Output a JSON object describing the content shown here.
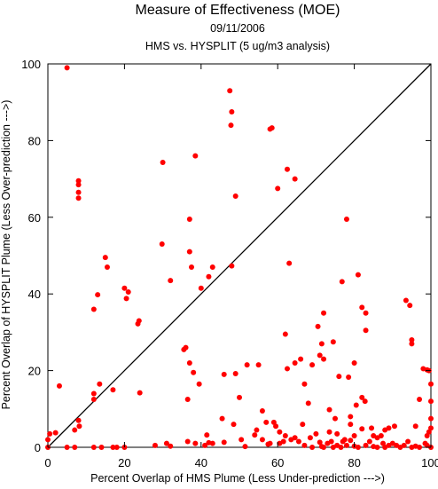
{
  "chart_data": {
    "type": "scatter",
    "title": "Measure of Effectiveness (MOE)",
    "subtitle_date": "09/11/2006",
    "subtitle_analysis": "HMS vs. HYSPLIT  (5 ug/m3 analysis)",
    "xlabel": "Percent Overlap of HMS Plume (Less Under-prediction --->)",
    "ylabel": "Percent Overlap of HYSPLIT Plume (Less Over-prediction --->)",
    "xlim": [
      0,
      100
    ],
    "ylim": [
      0,
      100
    ],
    "x_ticks": [
      "0",
      "20",
      "40",
      "60",
      "80",
      "100"
    ],
    "y_ticks": [
      "0",
      "20",
      "40",
      "60",
      "80",
      "100"
    ],
    "grid": false,
    "reference_line": "diagonal 1:1",
    "point_color": "#ff0000",
    "line_color": "#000000",
    "series": [
      {
        "points": [
          [
            5,
            99
          ],
          [
            8,
            69.5
          ],
          [
            8,
            68.5
          ],
          [
            8,
            66.5
          ],
          [
            8,
            65
          ],
          [
            15,
            49.5
          ],
          [
            15.5,
            47
          ],
          [
            12,
            36
          ],
          [
            13,
            39.8
          ],
          [
            21,
            40.5
          ],
          [
            20,
            41.5
          ],
          [
            20.5,
            38.8
          ],
          [
            23.5,
            32.2
          ],
          [
            23.8,
            33
          ],
          [
            12,
            12.5
          ],
          [
            12,
            14
          ],
          [
            13.5,
            16.5
          ],
          [
            17,
            15
          ],
          [
            24,
            14.2
          ],
          [
            8,
            7
          ],
          [
            8.2,
            5.5
          ],
          [
            7,
            4.5
          ],
          [
            3,
            16
          ],
          [
            2,
            3.8
          ],
          [
            0.5,
            3.5
          ],
          [
            0,
            2
          ],
          [
            0,
            0
          ],
          [
            5,
            0
          ],
          [
            7,
            0
          ],
          [
            12,
            0
          ],
          [
            14,
            0
          ],
          [
            17,
            0
          ],
          [
            18,
            0
          ],
          [
            20,
            0
          ],
          [
            28,
            0.5
          ],
          [
            32,
            0.3
          ],
          [
            36.5,
            1.5
          ],
          [
            38.5,
            1
          ],
          [
            41,
            0.5
          ],
          [
            42,
            1.2
          ],
          [
            43,
            1
          ],
          [
            46,
            1.3
          ],
          [
            31,
            1
          ],
          [
            30,
            74.3
          ],
          [
            29.8,
            53
          ],
          [
            32,
            43.5
          ],
          [
            37,
            59.5
          ],
          [
            37,
            51
          ],
          [
            37.5,
            47
          ],
          [
            38.5,
            76
          ],
          [
            40,
            41.5
          ],
          [
            42,
            44.5
          ],
          [
            43,
            47
          ],
          [
            35.5,
            25.5
          ],
          [
            36,
            26
          ],
          [
            37,
            22
          ],
          [
            38,
            19.5
          ],
          [
            36.5,
            12.5
          ],
          [
            39.5,
            16.5
          ],
          [
            45.5,
            7.5
          ],
          [
            41.5,
            3.2
          ],
          [
            47.5,
            93
          ],
          [
            48,
            87.5
          ],
          [
            47.8,
            84
          ],
          [
            48,
            47.3
          ],
          [
            49,
            65.5
          ],
          [
            46,
            19
          ],
          [
            49,
            19.2
          ],
          [
            52,
            21.5
          ],
          [
            50,
            13
          ],
          [
            48.5,
            6
          ],
          [
            50.5,
            2
          ],
          [
            51.5,
            0.2
          ],
          [
            55,
            21.5
          ],
          [
            56,
            9.5
          ],
          [
            57,
            6.5
          ],
          [
            58,
            83
          ],
          [
            58.5,
            83.3
          ],
          [
            60,
            67.5
          ],
          [
            62.5,
            72.5
          ],
          [
            64.5,
            70
          ],
          [
            63,
            48
          ],
          [
            62,
            29.5
          ],
          [
            62.5,
            20.5
          ],
          [
            64.5,
            22
          ],
          [
            66,
            23
          ],
          [
            67,
            16.5
          ],
          [
            69,
            21.5
          ],
          [
            70.5,
            31.5
          ],
          [
            71.5,
            27
          ],
          [
            72,
            35
          ],
          [
            71,
            24
          ],
          [
            72,
            23
          ],
          [
            73.5,
            9.8
          ],
          [
            74.5,
            27.5
          ],
          [
            75,
            7.5
          ],
          [
            75.5,
            3.5
          ],
          [
            76,
            18.5
          ],
          [
            76.8,
            43.2
          ],
          [
            78.5,
            18.3
          ],
          [
            78,
            59.5
          ],
          [
            79,
            8
          ],
          [
            79,
            6
          ],
          [
            80,
            3
          ],
          [
            80.5,
            11
          ],
          [
            81,
            45
          ],
          [
            82,
            36.5
          ],
          [
            82,
            13
          ],
          [
            83,
            35
          ],
          [
            83,
            30.5
          ],
          [
            82.8,
            12
          ],
          [
            80,
            22
          ],
          [
            84.5,
            5
          ],
          [
            85,
            3
          ],
          [
            86,
            2.5
          ],
          [
            88,
            4.5
          ],
          [
            87,
            3
          ],
          [
            89,
            5
          ],
          [
            90,
            1
          ],
          [
            91,
            0.5
          ],
          [
            93.5,
            38.3
          ],
          [
            94.5,
            37
          ],
          [
            95,
            28
          ],
          [
            95,
            27
          ],
          [
            97,
            12.5
          ],
          [
            96,
            5.5
          ],
          [
            98,
            20.5
          ],
          [
            99,
            20.2
          ],
          [
            99.5,
            20
          ],
          [
            100,
            16.5
          ],
          [
            100,
            12
          ],
          [
            100,
            7.5
          ],
          [
            100,
            5
          ],
          [
            99.5,
            4
          ],
          [
            99,
            3
          ],
          [
            98.5,
            1
          ],
          [
            99,
            0.5
          ],
          [
            100,
            0
          ],
          [
            97,
            0
          ],
          [
            95,
            0
          ],
          [
            93,
            0.5
          ],
          [
            54.5,
            4.5
          ],
          [
            54,
            3.2
          ],
          [
            56,
            2
          ],
          [
            57.5,
            0.8
          ],
          [
            58,
            1
          ],
          [
            59,
            6.5
          ],
          [
            59.5,
            5.5
          ],
          [
            60.5,
            4
          ],
          [
            60.5,
            1
          ],
          [
            61.5,
            1.5
          ],
          [
            62,
            3
          ],
          [
            63.5,
            2
          ],
          [
            64.5,
            2.5
          ],
          [
            65.5,
            1.5
          ],
          [
            66.5,
            6
          ],
          [
            67,
            0.5
          ],
          [
            68,
            11.5
          ],
          [
            68.5,
            2.5
          ],
          [
            69,
            0
          ],
          [
            70,
            3.5
          ],
          [
            71,
            1.3
          ],
          [
            71.5,
            0.2
          ],
          [
            72,
            0
          ],
          [
            73,
            1
          ],
          [
            73.5,
            4
          ],
          [
            74,
            1.5
          ],
          [
            74.5,
            0
          ],
          [
            75.5,
            0.5
          ],
          [
            76.5,
            0
          ],
          [
            77,
            1.5
          ],
          [
            77.5,
            2
          ],
          [
            78,
            0.5
          ],
          [
            79,
            1.8
          ],
          [
            80,
            0.3
          ],
          [
            81,
            0
          ],
          [
            82,
            4.8
          ],
          [
            83,
            0.5
          ],
          [
            84,
            1.5
          ],
          [
            85,
            0.2
          ],
          [
            86,
            0
          ],
          [
            87.5,
            1
          ],
          [
            88,
            0
          ],
          [
            89,
            0.5
          ],
          [
            90.5,
            5.5
          ],
          [
            92,
            0
          ],
          [
            94,
            1.5
          ],
          [
            96,
            0.3
          ]
        ]
      }
    ]
  }
}
